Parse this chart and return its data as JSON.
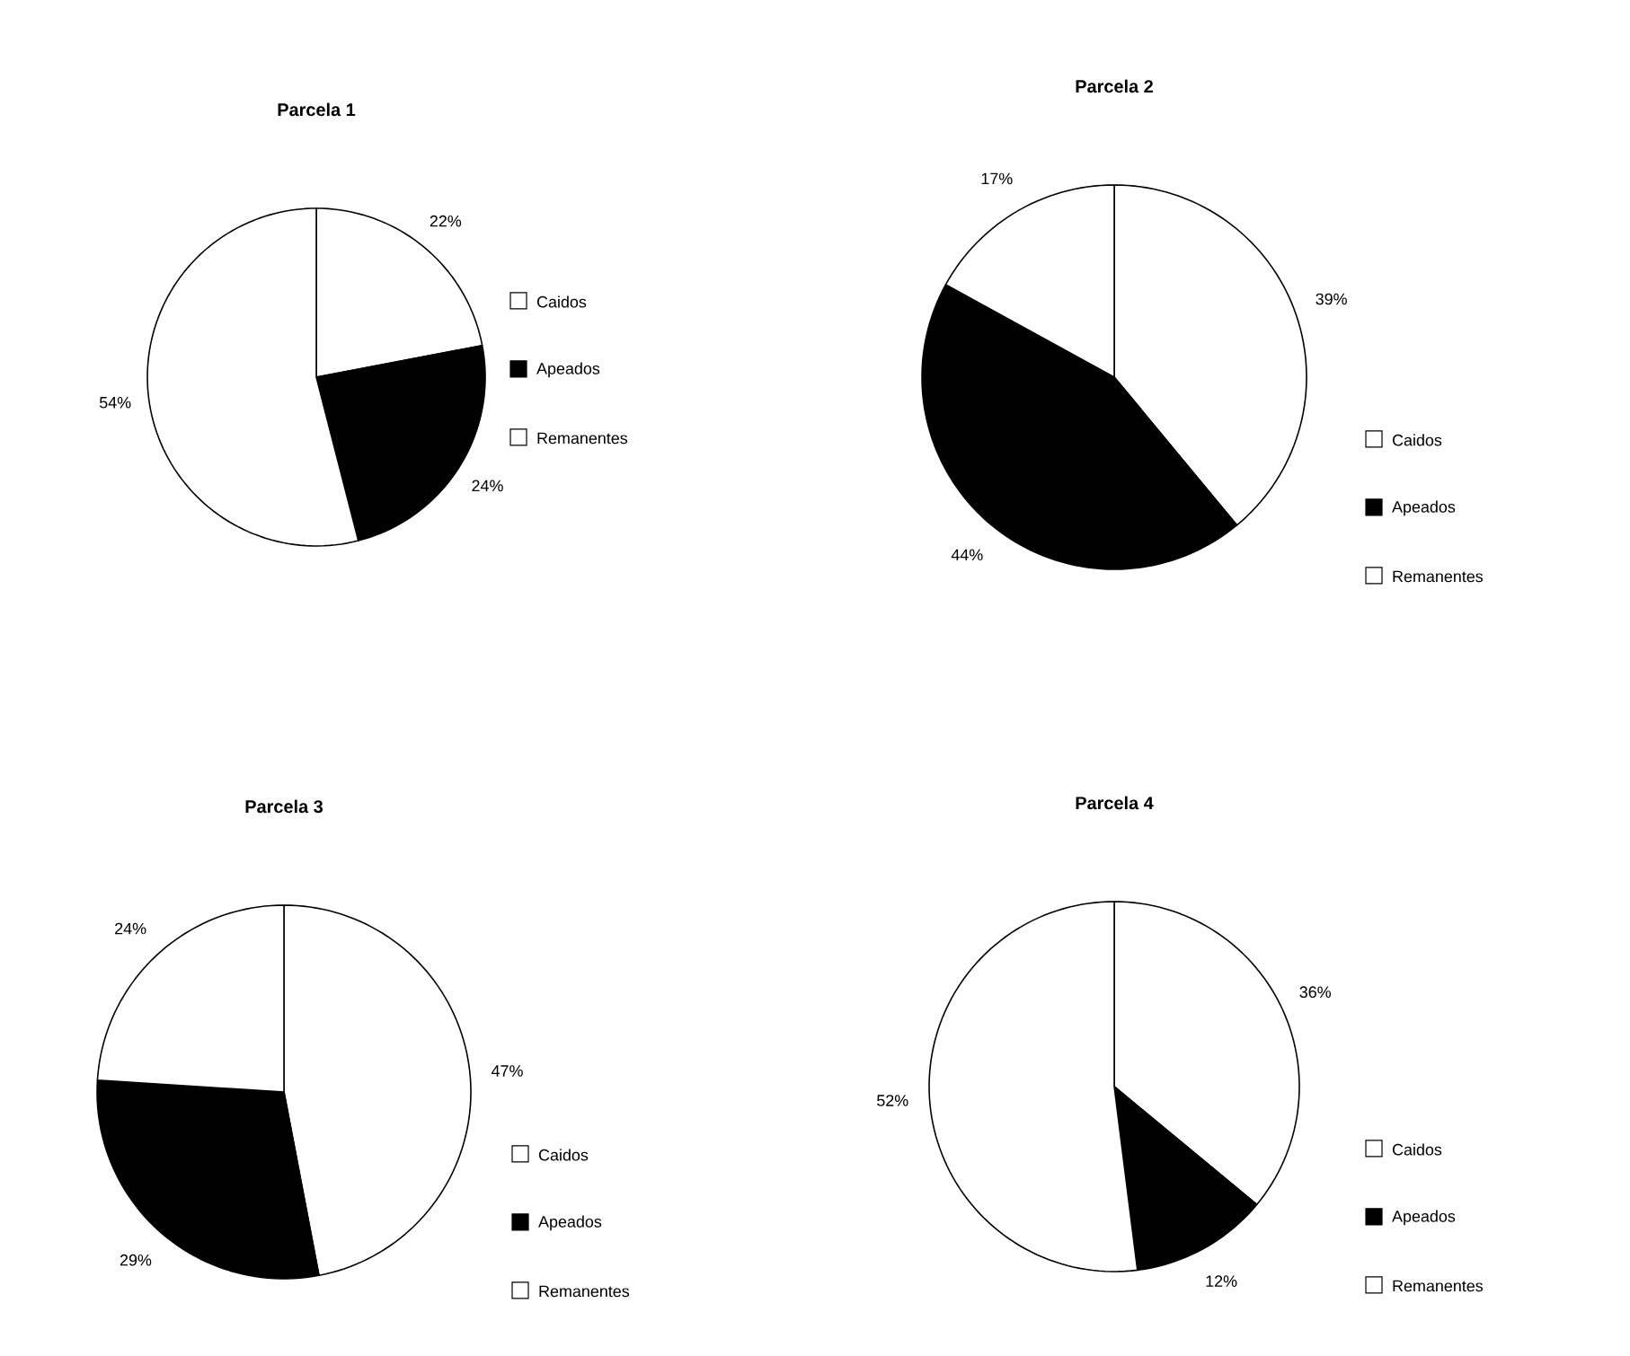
{
  "chart_data": [
    {
      "type": "pie",
      "title": "Parcela 1",
      "categories": [
        "Caidos",
        "Apeados",
        "Remanentes"
      ],
      "values": [
        22,
        24,
        54
      ],
      "colors": [
        "#ffffff",
        "#000000",
        "#ffffff"
      ],
      "value_labels": [
        "22%",
        "24%",
        "54%"
      ],
      "legend": "right"
    },
    {
      "type": "pie",
      "title": "Parcela 2",
      "categories": [
        "Caidos",
        "Apeados",
        "Remanentes"
      ],
      "values": [
        39,
        44,
        17
      ],
      "colors": [
        "#ffffff",
        "#000000",
        "#ffffff"
      ],
      "value_labels": [
        "39%",
        "44%",
        "17%"
      ],
      "legend": "bottom right"
    },
    {
      "type": "pie",
      "title": "Parcela 3",
      "categories": [
        "Caidos",
        "Apeados",
        "Remanentes"
      ],
      "values": [
        47,
        29,
        24
      ],
      "colors": [
        "#ffffff",
        "#000000",
        "#ffffff"
      ],
      "value_labels": [
        "47%",
        "29%",
        "24%"
      ],
      "legend": "bottom right"
    },
    {
      "type": "pie",
      "title": "Parcela 4",
      "categories": [
        "Caidos",
        "Apeados",
        "Remanentes"
      ],
      "values": [
        36,
        12,
        52
      ],
      "colors": [
        "#ffffff",
        "#000000",
        "#ffffff"
      ],
      "value_labels": [
        "36%",
        "12%",
        "52%"
      ],
      "legend": "bottom right"
    }
  ]
}
